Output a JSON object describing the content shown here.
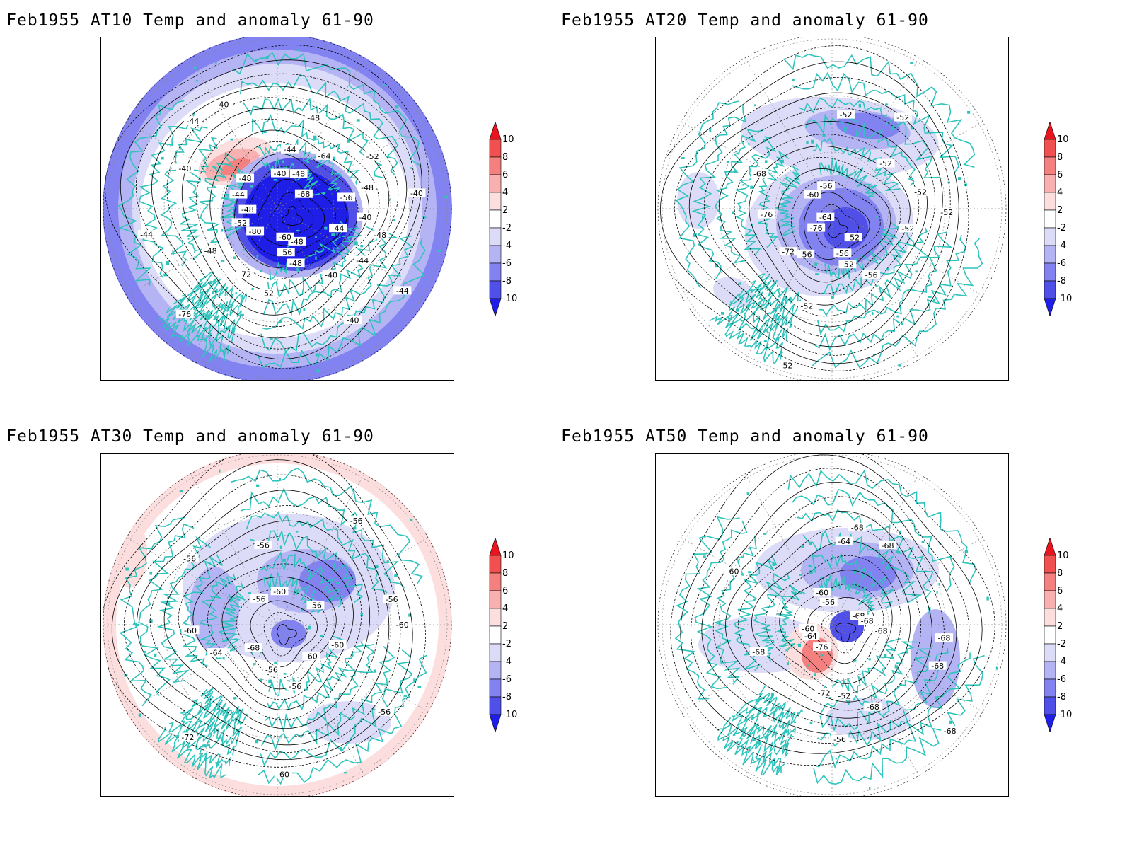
{
  "panels": [
    {
      "id": "at10",
      "title": "Feb1955 AT10 Temp and anomaly 61-90",
      "contour_labels": [
        "-48",
        "-44",
        "-44",
        "-44",
        "-40",
        "-40",
        "-48",
        "-48",
        "-56",
        "-52",
        "-60",
        "-76",
        "-72",
        "-80",
        "-48",
        "-52",
        "-44",
        "-48",
        "-44",
        "-40",
        "-48",
        "-44",
        "-40",
        "-40",
        "-44",
        "-48",
        "-48",
        "-68",
        "-64",
        "-52",
        "-56",
        "-48",
        "-40",
        "-40"
      ],
      "anomaly_pattern": "at10"
    },
    {
      "id": "at20",
      "title": "Feb1955 AT20 Temp and anomaly 61-90",
      "contour_labels": [
        "-52",
        "-52",
        "-56",
        "-56",
        "-52",
        "-52",
        "-52",
        "-56",
        "-72",
        "-76",
        "-76",
        "-68",
        "-64",
        "-60",
        "-56",
        "-52",
        "-52",
        "-52",
        "-52",
        "-52"
      ],
      "anomaly_pattern": "at20"
    },
    {
      "id": "at30",
      "title": "Feb1955 AT30 Temp and anomaly 61-90",
      "contour_labels": [
        "-60",
        "-56",
        "-60",
        "-56",
        "-60",
        "-56",
        "-72",
        "-68",
        "-64",
        "-60",
        "-56",
        "-56",
        "-56",
        "-60",
        "-56",
        "-56",
        "-56",
        "-60"
      ],
      "anomaly_pattern": "at30"
    },
    {
      "id": "at50",
      "title": "Feb1955 AT50 Temp and anomaly 61-90",
      "contour_labels": [
        "-68",
        "-68",
        "-68",
        "-68",
        "-56",
        "-52",
        "-72",
        "-76",
        "-68",
        "-64",
        "-60",
        "-60",
        "-56",
        "-60",
        "-64",
        "-68",
        "-68",
        "-68",
        "-68",
        "-68"
      ],
      "anomaly_pattern": "at50"
    }
  ],
  "colorbar": {
    "labels": [
      "10",
      "8",
      "6",
      "4",
      "2",
      "-2",
      "-4",
      "-6",
      "-8",
      "-10"
    ],
    "colors": [
      "#e8141e",
      "#f05050",
      "#f48080",
      "#f8b0b0",
      "#fcdede",
      "#ffffff",
      "#dcdcf8",
      "#b4b4f4",
      "#8282f0",
      "#5050e8",
      "#1e1ee6"
    ]
  },
  "colors": {
    "coastline": "#2ec4bc",
    "contour": "#000000",
    "grid": "#808080"
  }
}
